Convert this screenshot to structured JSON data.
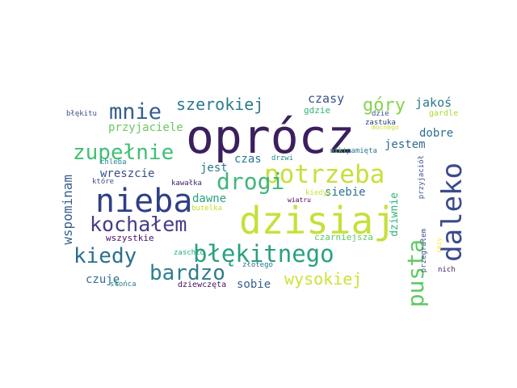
{
  "words": [
    {
      "text": "oprócz",
      "color": "#3b1f5e"
    },
    {
      "text": "dzisiaj",
      "color": "#c6e03a"
    },
    {
      "text": "nieba",
      "color": "#2f3f86"
    },
    {
      "text": "potrzeba",
      "color": "#c8df3a"
    },
    {
      "text": "błękitnego",
      "color": "#2aa080"
    },
    {
      "text": "kochałem",
      "color": "#463b88"
    },
    {
      "text": "drogi",
      "color": "#3fb67a"
    },
    {
      "text": "zupełnie",
      "color": "#3fbf74"
    },
    {
      "text": "daleko",
      "color": "#3b4b8c"
    },
    {
      "text": "pusta",
      "color": "#5ec864"
    },
    {
      "text": "kiedy",
      "color": "#2c6f8e"
    },
    {
      "text": "bardzo",
      "color": "#2e7e8e"
    },
    {
      "text": "mnie",
      "color": "#34608d"
    },
    {
      "text": "szerokiej",
      "color": "#2d7b8e"
    },
    {
      "text": "góry",
      "color": "#86d44a"
    },
    {
      "text": "wysokiej",
      "color": "#cfe13a"
    },
    {
      "text": "wspominam",
      "color": "#345f8d"
    },
    {
      "text": "czasy",
      "color": "#3c508b"
    },
    {
      "text": "jakoś",
      "color": "#2a788e"
    },
    {
      "text": "przyjaciele",
      "color": "#6cc85e"
    },
    {
      "text": "dobre",
      "color": "#2d6e8e"
    },
    {
      "text": "jestem",
      "color": "#2f6b8e"
    },
    {
      "text": "wreszcie",
      "color": "#3a4e8c"
    },
    {
      "text": "jest",
      "color": "#2a768e"
    },
    {
      "text": "czas",
      "color": "#2a788e"
    },
    {
      "text": "dawne",
      "color": "#2ba17f"
    },
    {
      "text": "siebie",
      "color": "#2c728e"
    },
    {
      "text": "dziwnie",
      "color": "#2fb47c"
    },
    {
      "text": "czuję",
      "color": "#2e6e8e"
    },
    {
      "text": "sobie",
      "color": "#35608d"
    },
    {
      "text": "wszystkie",
      "color": "#471063"
    },
    {
      "text": "gdzie",
      "color": "#30b47b"
    },
    {
      "text": "błękitu",
      "color": "#3b528b"
    },
    {
      "text": "kawałka",
      "color": "#40206e"
    },
    {
      "text": "drzwi",
      "color": "#21918c"
    },
    {
      "text": "nikt",
      "color": "#55c667"
    },
    {
      "text": "pamięta",
      "color": "#2a788e"
    },
    {
      "text": "zastuka",
      "color": "#2a3b76"
    },
    {
      "text": "mocnego",
      "color": "#c6e03a"
    },
    {
      "text": "gardle",
      "color": "#a8db34"
    },
    {
      "text": "przyjaciół",
      "color": "#3b528b"
    },
    {
      "text": "chleba",
      "color": "#26828e"
    },
    {
      "text": "które",
      "color": "#3b528b"
    },
    {
      "text": "kiedyś",
      "color": "#c6e03a"
    },
    {
      "text": "butelka",
      "color": "#bddf26"
    },
    {
      "text": "czarniejsza",
      "color": "#5ec962"
    },
    {
      "text": "przegrałem",
      "color": "#3b528b"
    },
    {
      "text": "razy",
      "color": "#fde725"
    },
    {
      "text": "zaschło",
      "color": "#27ad81"
    },
    {
      "text": "złotego",
      "color": "#2c728e"
    },
    {
      "text": "wiatru",
      "color": "#440154"
    },
    {
      "text": "słońca",
      "color": "#26828e"
    },
    {
      "text": "dziewczęta",
      "color": "#471063"
    },
    {
      "text": "nich",
      "color": "#3b1c5f"
    },
    {
      "text": "dzie",
      "color": "#3b528b"
    }
  ]
}
